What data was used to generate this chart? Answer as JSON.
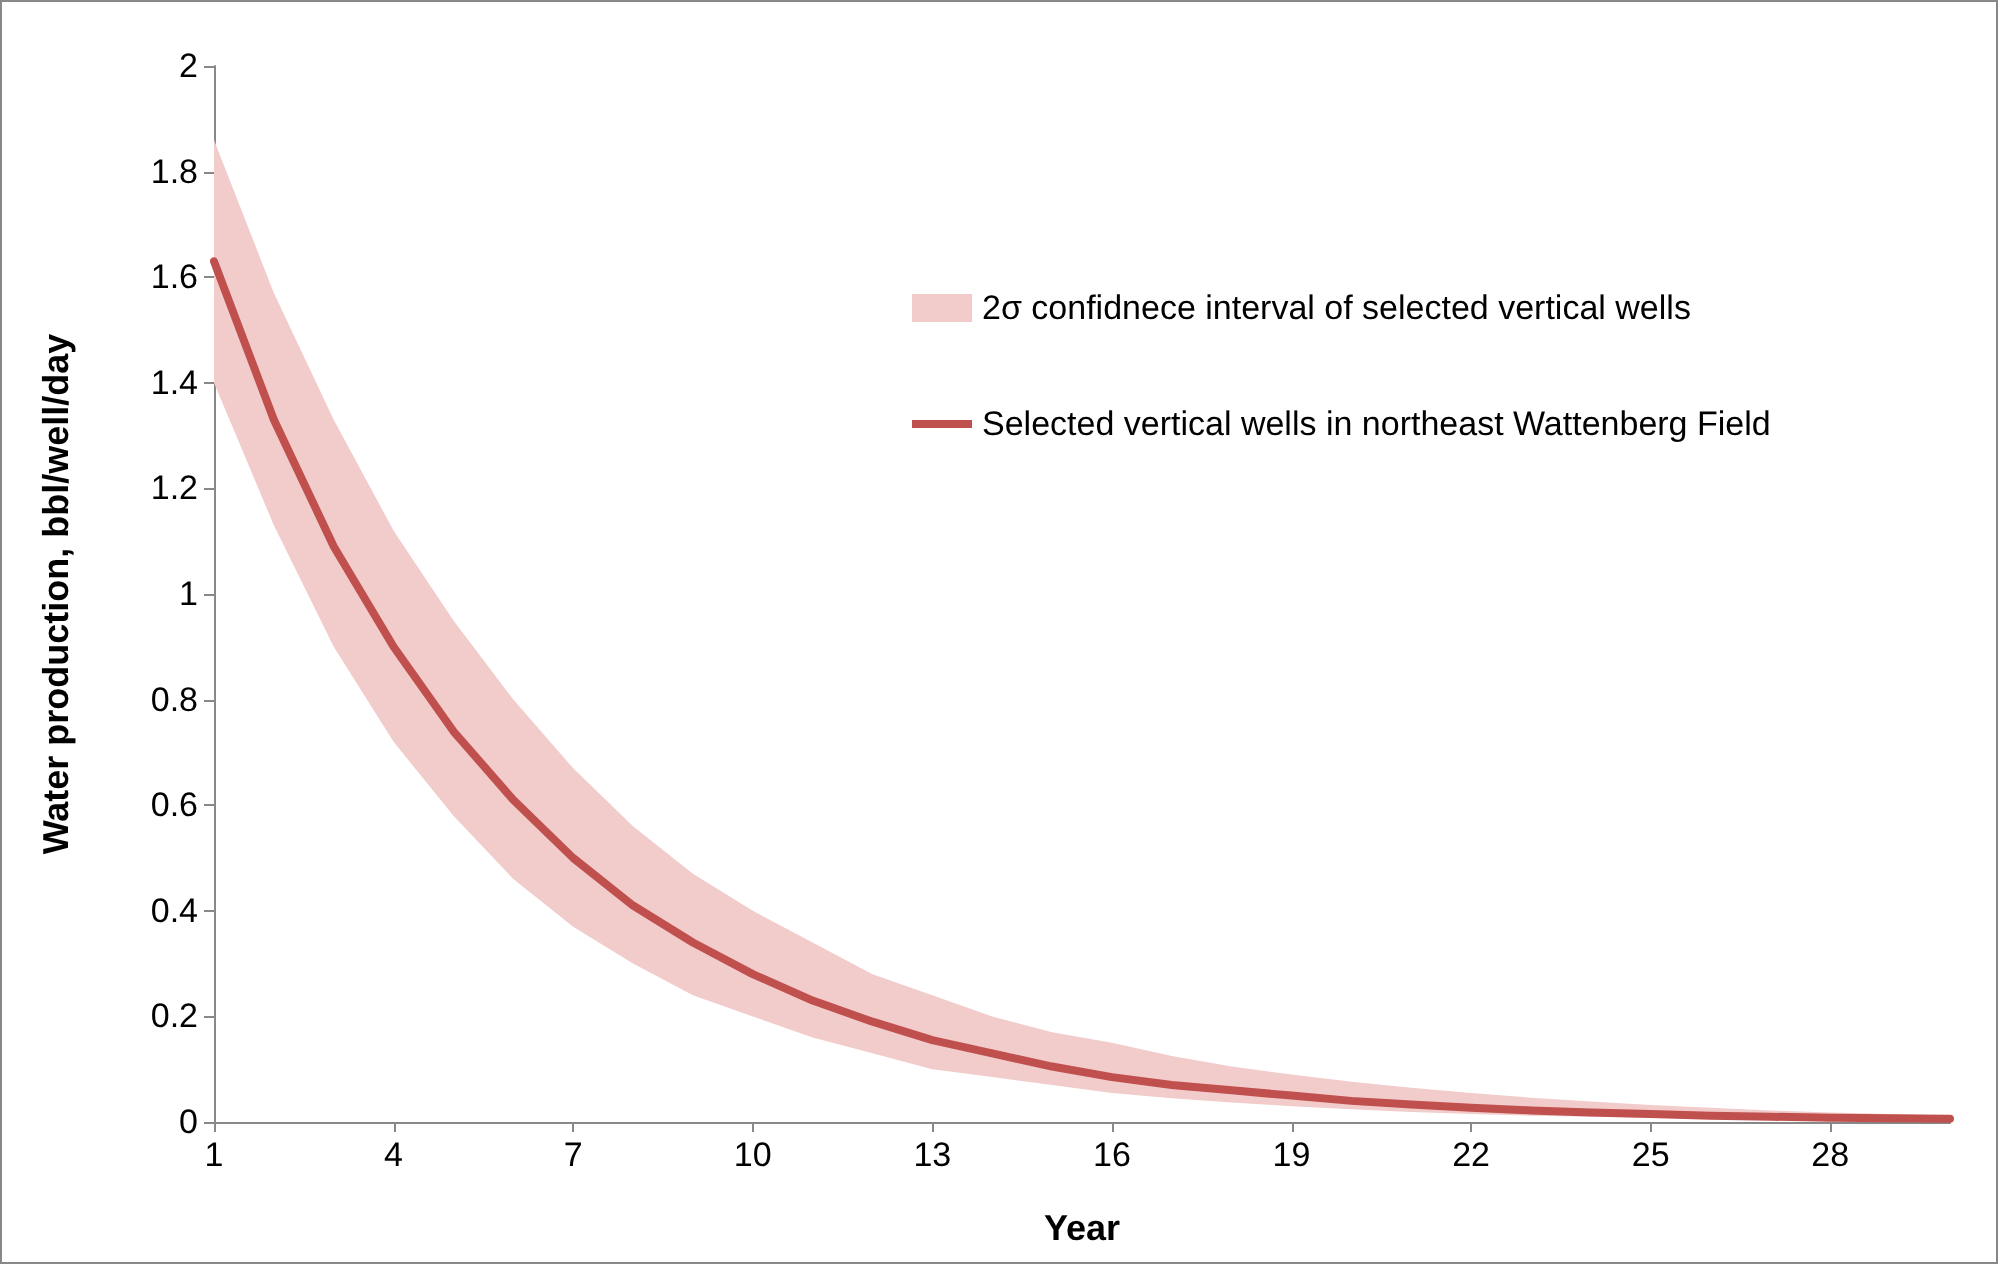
{
  "chart_data": {
    "type": "line",
    "xlabel": "Year",
    "ylabel": "Water production, bbl/well/day",
    "categories": [
      "1",
      null,
      null,
      "4",
      null,
      null,
      "7",
      null,
      null,
      "10",
      null,
      null,
      "13",
      null,
      null,
      "16",
      null,
      null,
      "19",
      null,
      null,
      "22",
      null,
      null,
      "25",
      null,
      null,
      "28",
      null,
      null
    ],
    "series": [
      {
        "name": "2σ confidnece interval of selected vertical wells",
        "type": "area",
        "color": "#f2cbcb",
        "values": [
          null,
          null,
          null,
          null,
          null,
          null,
          null,
          null,
          null,
          null,
          null,
          null,
          null,
          null,
          null,
          null,
          null,
          null,
          null,
          null,
          null,
          null,
          null,
          null,
          null,
          null,
          null,
          null,
          null,
          null
        ],
        "upper": [
          1.86,
          1.57,
          1.33,
          1.12,
          0.95,
          0.8,
          0.67,
          0.56,
          0.47,
          0.4,
          0.34,
          0.28,
          0.24,
          0.2,
          0.17,
          0.15,
          0.125,
          0.105,
          0.09,
          0.076,
          0.065,
          0.055,
          0.046,
          0.039,
          0.032,
          0.027,
          0.022,
          0.018,
          0.015,
          0.012
        ],
        "lower": [
          1.4,
          1.13,
          0.9,
          0.72,
          0.58,
          0.46,
          0.37,
          0.3,
          0.24,
          0.2,
          0.16,
          0.13,
          0.1,
          0.085,
          0.07,
          0.055,
          0.045,
          0.037,
          0.03,
          0.024,
          0.019,
          0.015,
          0.012,
          0.01,
          0.008,
          0.006,
          0.005,
          0.004,
          0.003,
          0.003
        ]
      },
      {
        "name": "Selected vertical wells in northeast Wattenberg Field",
        "color": "#c0504d",
        "values": [
          1.63,
          1.33,
          1.09,
          0.9,
          0.74,
          0.61,
          0.5,
          0.41,
          0.34,
          0.28,
          0.23,
          0.19,
          0.155,
          0.13,
          0.105,
          0.085,
          0.07,
          0.06,
          0.05,
          0.04,
          0.033,
          0.027,
          0.022,
          0.018,
          0.015,
          0.012,
          0.01,
          0.008,
          0.007,
          0.006
        ]
      }
    ],
    "ylim": [
      0,
      2
    ],
    "yticks": [
      0,
      0.2,
      0.4,
      0.6,
      0.8,
      1,
      1.2,
      1.4,
      1.6,
      1.8,
      2
    ],
    "grid": false,
    "legend": "right",
    "marker": "none",
    "line_style": "solid"
  }
}
